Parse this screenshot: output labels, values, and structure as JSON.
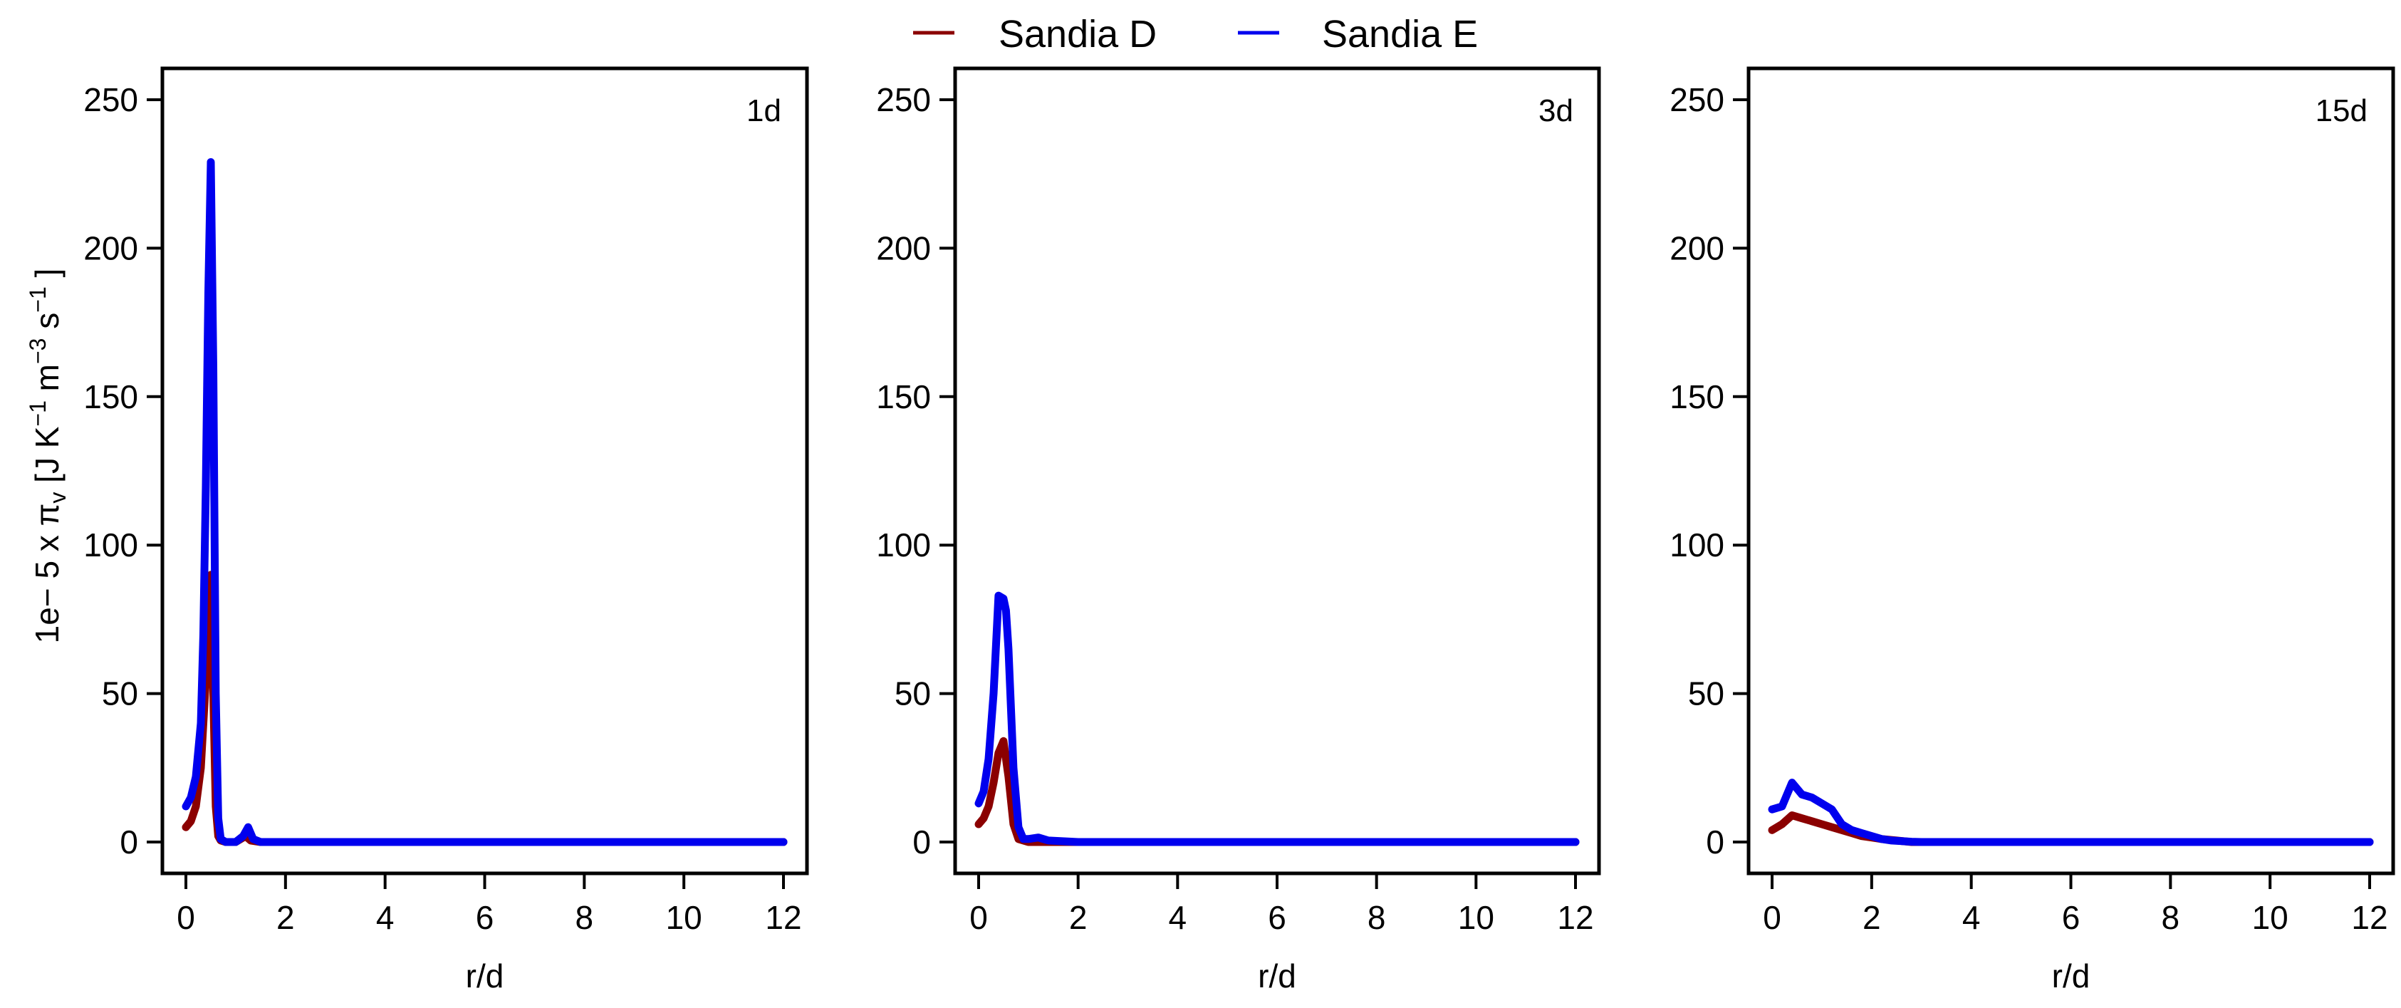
{
  "legend": {
    "items": [
      {
        "label": "Sandia D",
        "color": "#8B0000"
      },
      {
        "label": "Sandia E",
        "color": "#0000EE"
      }
    ],
    "placement": "top-center"
  },
  "y_axis_title": {
    "main": "1e− 5 x π",
    "sub": "v",
    "units": " [J K",
    "sup1": "−1",
    "m": " m",
    "sup2": "−3",
    "s": " s",
    "sup3": "−1",
    "close": " ]"
  },
  "chart_data": [
    {
      "type": "line",
      "panel_label": "1d",
      "xlabel": "r/d",
      "xlim": [
        0,
        12
      ],
      "ylim": [
        0,
        250
      ],
      "xticks": [
        0,
        2,
        4,
        6,
        8,
        10,
        12
      ],
      "yticks": [
        0,
        50,
        100,
        150,
        200,
        250
      ],
      "grid": false,
      "series": [
        {
          "name": "Sandia D",
          "color": "#8B0000",
          "x": [
            0,
            0.1,
            0.2,
            0.3,
            0.4,
            0.45,
            0.5,
            0.55,
            0.6,
            0.65,
            0.7,
            0.8,
            1.0,
            1.2,
            1.3,
            1.5,
            2,
            4,
            6,
            8,
            10,
            12
          ],
          "y": [
            5,
            7,
            12,
            25,
            55,
            80,
            90,
            50,
            12,
            2,
            0.5,
            0,
            0,
            2,
            0.5,
            0,
            0,
            0,
            0,
            0,
            0,
            0
          ]
        },
        {
          "name": "Sandia E",
          "color": "#0000EE",
          "x": [
            0,
            0.1,
            0.2,
            0.3,
            0.35,
            0.4,
            0.45,
            0.5,
            0.55,
            0.6,
            0.65,
            0.7,
            0.8,
            1.0,
            1.15,
            1.25,
            1.35,
            1.5,
            2,
            4,
            6,
            8,
            10,
            12
          ],
          "y": [
            12,
            15,
            22,
            40,
            70,
            120,
            185,
            229,
            160,
            50,
            8,
            1,
            0,
            0,
            2,
            5,
            1,
            0,
            0,
            0,
            0,
            0,
            0,
            0
          ]
        }
      ]
    },
    {
      "type": "line",
      "panel_label": "3d",
      "xlabel": "r/d",
      "xlim": [
        0,
        12
      ],
      "ylim": [
        0,
        250
      ],
      "xticks": [
        0,
        2,
        4,
        6,
        8,
        10,
        12
      ],
      "yticks": [
        0,
        50,
        100,
        150,
        200,
        250
      ],
      "grid": false,
      "series": [
        {
          "name": "Sandia D",
          "color": "#8B0000",
          "x": [
            0,
            0.1,
            0.2,
            0.3,
            0.4,
            0.5,
            0.6,
            0.7,
            0.8,
            1.0,
            1.5,
            2,
            4,
            6,
            8,
            10,
            12
          ],
          "y": [
            6,
            8,
            12,
            20,
            30,
            34,
            22,
            6,
            1,
            0,
            0,
            0,
            0,
            0,
            0,
            0,
            0
          ]
        },
        {
          "name": "Sandia E",
          "color": "#0000EE",
          "x": [
            0,
            0.1,
            0.2,
            0.3,
            0.4,
            0.5,
            0.55,
            0.6,
            0.7,
            0.8,
            0.9,
            1.0,
            1.2,
            1.4,
            2,
            4,
            6,
            8,
            10,
            12
          ],
          "y": [
            13,
            17,
            28,
            50,
            83,
            82,
            78,
            65,
            25,
            5,
            1,
            1,
            1.5,
            0.5,
            0,
            0,
            0,
            0,
            0,
            0
          ]
        }
      ]
    },
    {
      "type": "line",
      "panel_label": "15d",
      "xlabel": "r/d",
      "xlim": [
        0,
        12
      ],
      "ylim": [
        0,
        250
      ],
      "xticks": [
        0,
        2,
        4,
        6,
        8,
        10,
        12
      ],
      "yticks": [
        0,
        50,
        100,
        150,
        200,
        250
      ],
      "grid": false,
      "series": [
        {
          "name": "Sandia D",
          "color": "#8B0000",
          "x": [
            0,
            0.2,
            0.4,
            0.6,
            0.8,
            1.0,
            1.2,
            1.4,
            1.6,
            1.8,
            2.0,
            2.2,
            2.5,
            2.8,
            4,
            6,
            8,
            10,
            12
          ],
          "y": [
            4,
            6,
            9,
            8,
            7,
            6,
            5,
            4,
            3,
            2,
            1.5,
            1,
            0.5,
            0,
            0,
            0,
            0,
            0,
            0
          ]
        },
        {
          "name": "Sandia E",
          "color": "#0000EE",
          "x": [
            0,
            0.2,
            0.3,
            0.4,
            0.5,
            0.6,
            0.8,
            1.0,
            1.2,
            1.4,
            1.6,
            1.8,
            2.0,
            2.2,
            2.4,
            2.6,
            2.8,
            3.0,
            4,
            6,
            8,
            10,
            12
          ],
          "y": [
            11,
            12,
            16,
            20,
            18,
            16,
            15,
            13,
            11,
            6,
            4,
            3,
            2,
            1,
            0.5,
            0.3,
            0.1,
            0,
            0,
            0,
            0,
            0,
            0
          ]
        }
      ]
    }
  ]
}
